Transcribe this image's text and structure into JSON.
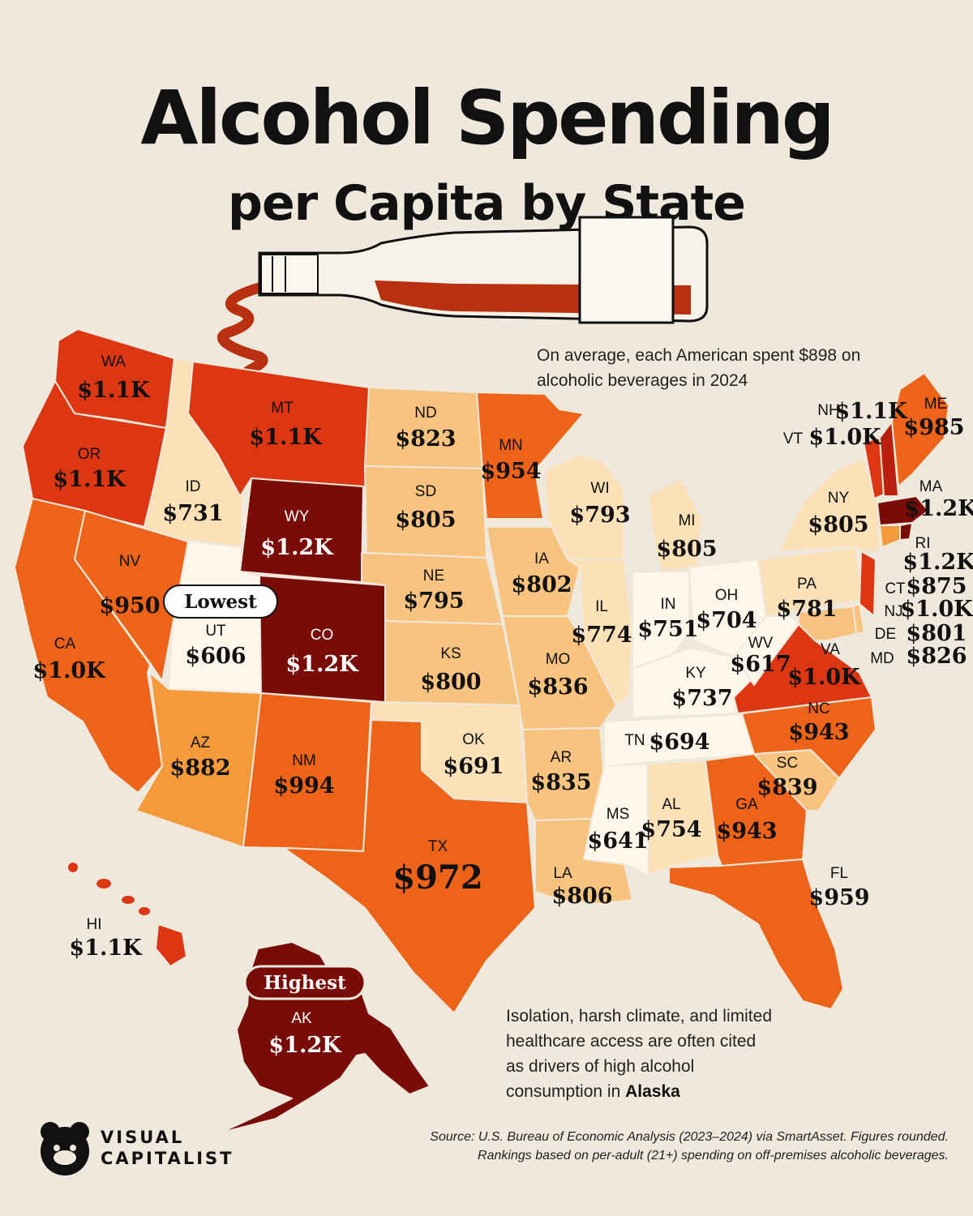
{
  "title_line1": "Alcohol Spending",
  "title_line2": "per Capita by State",
  "average_note": "On average, each American spent $898 on alcoholic beverages in 2024",
  "alaska_note": {
    "text": "Isolation, harsh climate, and limited healthcare access are often cited as drivers of high alcohol consumption in ",
    "emphasis": "Alaska"
  },
  "callouts": {
    "lowest": "Lowest",
    "highest": "Highest"
  },
  "source_line1": "Source: U.S. Bureau of Economic Analysis (2023–2024) via SmartAsset. Figures rounded.",
  "source_line2": "Rankings based on per-adult (21+) spending on off-premises alcoholic beverages.",
  "brand": {
    "line1": "VISUAL",
    "line2": "CAPITALIST"
  },
  "colors": {
    "background": "#efe8dc",
    "scale_lowest": "#fff7ec",
    "scale_low": "#fbe0b8",
    "scale_mid_low": "#f7c37e",
    "scale_mid": "#f59a3a",
    "scale_mid_high": "#ed6418",
    "scale_high": "#dc3712",
    "scale_highest": "#7a0c08",
    "wine": "#b8300f"
  },
  "chart_data": {
    "type": "choropleth",
    "unit": "USD per capita",
    "states": [
      {
        "abbr": "WA",
        "label": "$1.1K",
        "value": 1100
      },
      {
        "abbr": "OR",
        "label": "$1.1K",
        "value": 1100
      },
      {
        "abbr": "CA",
        "label": "$1.0K",
        "value": 1000
      },
      {
        "abbr": "ID",
        "label": "$731",
        "value": 731
      },
      {
        "abbr": "NV",
        "label": "$950",
        "value": 950
      },
      {
        "abbr": "UT",
        "label": "$606",
        "value": 606
      },
      {
        "abbr": "AZ",
        "label": "$882",
        "value": 882
      },
      {
        "abbr": "MT",
        "label": "$1.1K",
        "value": 1100
      },
      {
        "abbr": "WY",
        "label": "$1.2K",
        "value": 1200
      },
      {
        "abbr": "CO",
        "label": "$1.2K",
        "value": 1200
      },
      {
        "abbr": "NM",
        "label": "$994",
        "value": 994
      },
      {
        "abbr": "ND",
        "label": "$823",
        "value": 823
      },
      {
        "abbr": "SD",
        "label": "$805",
        "value": 805
      },
      {
        "abbr": "NE",
        "label": "$795",
        "value": 795
      },
      {
        "abbr": "KS",
        "label": "$800",
        "value": 800
      },
      {
        "abbr": "OK",
        "label": "$691",
        "value": 691
      },
      {
        "abbr": "TX",
        "label": "$972",
        "value": 972
      },
      {
        "abbr": "MN",
        "label": "$954",
        "value": 954
      },
      {
        "abbr": "IA",
        "label": "$802",
        "value": 802
      },
      {
        "abbr": "MO",
        "label": "$836",
        "value": 836
      },
      {
        "abbr": "AR",
        "label": "$835",
        "value": 835
      },
      {
        "abbr": "LA",
        "label": "$806",
        "value": 806
      },
      {
        "abbr": "WI",
        "label": "$793",
        "value": 793
      },
      {
        "abbr": "IL",
        "label": "$774",
        "value": 774
      },
      {
        "abbr": "MI",
        "label": "$805",
        "value": 805
      },
      {
        "abbr": "IN",
        "label": "$751",
        "value": 751
      },
      {
        "abbr": "OH",
        "label": "$704",
        "value": 704
      },
      {
        "abbr": "KY",
        "label": "$737",
        "value": 737
      },
      {
        "abbr": "TN",
        "label": "$694",
        "value": 694
      },
      {
        "abbr": "MS",
        "label": "$641",
        "value": 641
      },
      {
        "abbr": "AL",
        "label": "$754",
        "value": 754
      },
      {
        "abbr": "GA",
        "label": "$943",
        "value": 943
      },
      {
        "abbr": "FL",
        "label": "$959",
        "value": 959
      },
      {
        "abbr": "SC",
        "label": "$839",
        "value": 839
      },
      {
        "abbr": "NC",
        "label": "$943",
        "value": 943
      },
      {
        "abbr": "VA",
        "label": "$1.0K",
        "value": 1000
      },
      {
        "abbr": "WV",
        "label": "$617",
        "value": 617
      },
      {
        "abbr": "PA",
        "label": "$781",
        "value": 781
      },
      {
        "abbr": "NY",
        "label": "$805",
        "value": 805
      },
      {
        "abbr": "ME",
        "label": "$985",
        "value": 985
      },
      {
        "abbr": "NH",
        "label": "$1.1K",
        "value": 1100
      },
      {
        "abbr": "VT",
        "label": "$1.0K",
        "value": 1000
      },
      {
        "abbr": "MA",
        "label": "$1.2K",
        "value": 1200
      },
      {
        "abbr": "RI",
        "label": "$1.2K",
        "value": 1200
      },
      {
        "abbr": "CT",
        "label": "$875",
        "value": 875
      },
      {
        "abbr": "NJ",
        "label": "$1.0K",
        "value": 1000
      },
      {
        "abbr": "DE",
        "label": "$801",
        "value": 801
      },
      {
        "abbr": "MD",
        "label": "$826",
        "value": 826
      },
      {
        "abbr": "HI",
        "label": "$1.1K",
        "value": 1100
      },
      {
        "abbr": "AK",
        "label": "$1.2K",
        "value": 1200
      }
    ]
  }
}
